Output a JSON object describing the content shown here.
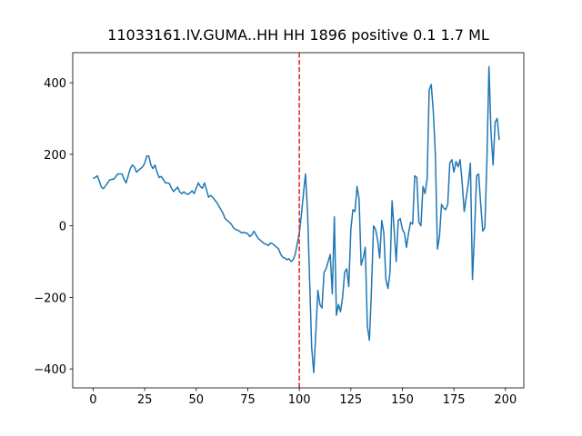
{
  "chart_data": {
    "type": "line",
    "title": "11033161.IV.GUMA..HH HH 1896 positive 0.1 1.7 ML",
    "x": [
      0,
      1,
      2,
      3,
      4,
      5,
      6,
      7,
      8,
      9,
      10,
      11,
      12,
      13,
      14,
      15,
      16,
      17,
      18,
      19,
      20,
      21,
      22,
      23,
      24,
      25,
      26,
      27,
      28,
      29,
      30,
      31,
      32,
      33,
      34,
      35,
      36,
      37,
      38,
      39,
      40,
      41,
      42,
      43,
      44,
      45,
      46,
      47,
      48,
      49,
      50,
      51,
      52,
      53,
      54,
      55,
      56,
      57,
      58,
      59,
      60,
      61,
      62,
      63,
      64,
      65,
      66,
      67,
      68,
      69,
      70,
      71,
      72,
      73,
      74,
      75,
      76,
      77,
      78,
      79,
      80,
      81,
      82,
      83,
      84,
      85,
      86,
      87,
      88,
      89,
      90,
      91,
      92,
      93,
      94,
      95,
      96,
      97,
      98,
      99,
      100,
      101,
      102,
      103,
      104,
      105,
      106,
      107,
      108,
      109,
      110,
      111,
      112,
      113,
      114,
      115,
      116,
      117,
      118,
      119,
      120,
      121,
      122,
      123,
      124,
      125,
      126,
      127,
      128,
      129,
      130,
      131,
      132,
      133,
      134,
      135,
      136,
      137,
      138,
      139,
      140,
      141,
      142,
      143,
      144,
      145,
      146,
      147,
      148,
      149,
      150,
      151,
      152,
      153,
      154,
      155,
      156,
      157,
      158,
      159,
      160,
      161,
      162,
      163,
      164,
      165,
      166,
      167,
      168,
      169,
      170,
      171,
      172,
      173,
      174,
      175,
      176,
      177,
      178,
      179,
      180,
      181,
      182,
      183,
      184,
      185,
      186,
      187,
      188,
      189,
      190,
      191,
      192,
      193,
      194,
      195,
      196,
      197
    ],
    "values": [
      132,
      135,
      140,
      125,
      108,
      104,
      112,
      120,
      128,
      130,
      130,
      138,
      145,
      145,
      145,
      130,
      120,
      140,
      160,
      170,
      165,
      150,
      155,
      160,
      165,
      175,
      195,
      195,
      170,
      160,
      170,
      150,
      135,
      138,
      130,
      120,
      120,
      118,
      105,
      96,
      102,
      108,
      95,
      90,
      95,
      90,
      88,
      92,
      98,
      90,
      105,
      120,
      110,
      105,
      120,
      100,
      80,
      85,
      80,
      72,
      65,
      55,
      45,
      35,
      20,
      15,
      10,
      5,
      -5,
      -10,
      -12,
      -15,
      -20,
      -18,
      -20,
      -22,
      -30,
      -25,
      -15,
      -25,
      -35,
      -40,
      -45,
      -50,
      -52,
      -55,
      -48,
      -50,
      -55,
      -60,
      -65,
      -80,
      -88,
      -90,
      -95,
      -92,
      -100,
      -95,
      -80,
      -50,
      -20,
      30,
      90,
      145,
      40,
      -150,
      -340,
      -410,
      -300,
      -180,
      -220,
      -230,
      -130,
      -120,
      -100,
      -80,
      -190,
      25,
      -250,
      -220,
      -240,
      -200,
      -130,
      -120,
      -170,
      -10,
      45,
      40,
      110,
      75,
      -110,
      -90,
      -60,
      -280,
      -320,
      -180,
      0,
      -10,
      -40,
      -90,
      15,
      -20,
      -150,
      -175,
      -130,
      70,
      -10,
      -100,
      15,
      20,
      -10,
      -20,
      -60,
      -20,
      10,
      5,
      140,
      135,
      10,
      0,
      110,
      90,
      130,
      380,
      395,
      320,
      200,
      -65,
      -30,
      60,
      50,
      45,
      60,
      175,
      185,
      150,
      180,
      165,
      185,
      120,
      40,
      80,
      120,
      175,
      -150,
      -20,
      140,
      145,
      60,
      -15,
      -5,
      180,
      445,
      260,
      170,
      290,
      300,
      240
    ],
    "color": "#1f77b4",
    "vline": {
      "x": 100,
      "color": "#d62728",
      "style": "dashed"
    },
    "xlim": [
      -9.9,
      208.9
    ],
    "ylim": [
      -453,
      484
    ],
    "xticks": [
      0,
      25,
      50,
      75,
      100,
      125,
      150,
      175,
      200
    ],
    "yticks": [
      {
        "value": -400,
        "label": "−400"
      },
      {
        "value": -200,
        "label": "−200"
      },
      0,
      200,
      400
    ],
    "grid": false
  }
}
